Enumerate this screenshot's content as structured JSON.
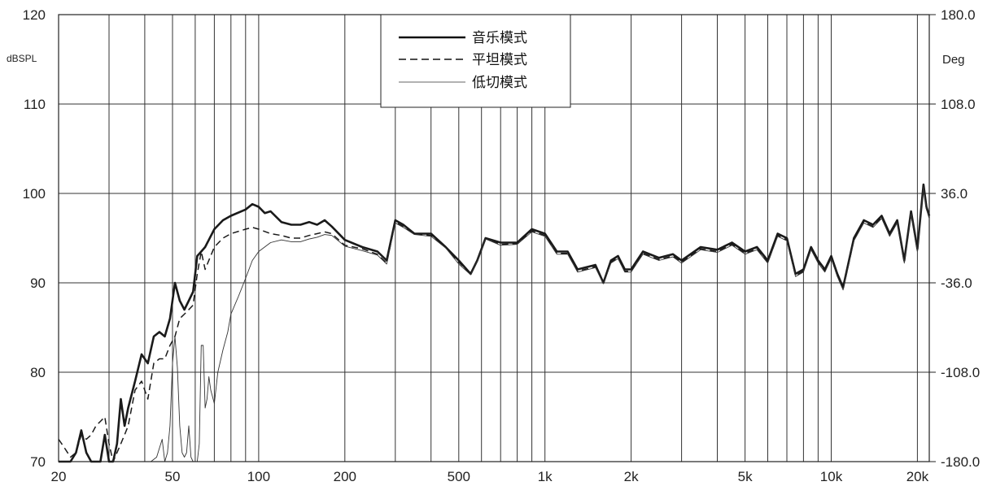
{
  "chart_data": {
    "type": "line",
    "x_scale": "log",
    "xlim": [
      20,
      22000
    ],
    "ylim": [
      70,
      120
    ],
    "y2lim": [
      -180,
      180
    ],
    "grid": true,
    "legend_position": "top-center",
    "y_unit_label": "dBSPL",
    "y2_unit_label": "Deg",
    "x_tick_values": [
      20,
      50,
      100,
      200,
      500,
      1000,
      2000,
      5000,
      10000,
      20000
    ],
    "x_tick_labels": [
      "20",
      "50",
      "100",
      "200",
      "500",
      "1k",
      "2k",
      "5k",
      "10k",
      "20k"
    ],
    "y_tick_values": [
      70,
      80,
      90,
      100,
      110,
      120
    ],
    "y_tick_labels": [
      "70",
      "80",
      "90",
      "100",
      "110",
      "120"
    ],
    "y2_tick_values": [
      -180,
      -108,
      -36,
      36,
      108,
      180
    ],
    "y2_tick_labels": [
      "-180.0",
      "-108.0",
      "-36.0",
      "36.0",
      "108.0",
      "180.0"
    ],
    "series": [
      {
        "name": "音乐模式",
        "style": "solid-thick",
        "color": "#1a1a1a",
        "x": [
          20,
          21,
          22,
          23,
          24,
          25,
          26,
          27,
          28,
          29,
          30,
          31,
          32,
          33,
          34,
          35,
          37,
          39,
          41,
          43,
          45,
          47,
          49,
          51,
          53,
          55,
          57,
          59,
          61,
          63,
          65,
          70,
          75,
          80,
          90,
          95,
          100,
          105,
          110,
          120,
          130,
          140,
          150,
          160,
          170,
          180,
          200,
          230,
          260,
          280,
          300,
          320,
          350,
          400,
          450,
          500,
          550,
          580,
          620,
          700,
          800,
          900,
          1000,
          1100,
          1200,
          1300,
          1500,
          1600,
          1700,
          1800,
          1900,
          2000,
          2200,
          2500,
          2800,
          3000,
          3500,
          4000,
          4500,
          5000,
          5500,
          6000,
          6500,
          7000,
          7500,
          8000,
          8500,
          9000,
          9500,
          10000,
          10500,
          11000,
          12000,
          13000,
          14000,
          15000,
          16000,
          17000,
          18000,
          19000,
          20000,
          21000,
          21500,
          22000
        ],
        "y": [
          70,
          70,
          70,
          71,
          73.5,
          71,
          70,
          70,
          70,
          73,
          70,
          70,
          72,
          77,
          74,
          76,
          79,
          82,
          81,
          84,
          84.5,
          84,
          86,
          90,
          88,
          87,
          88,
          89,
          93,
          93.5,
          94,
          96,
          97,
          97.5,
          98.2,
          98.8,
          98.5,
          97.8,
          98,
          96.8,
          96.5,
          96.5,
          96.8,
          96.5,
          97,
          96.3,
          94.8,
          94,
          93.5,
          92.5,
          97,
          96.5,
          95.5,
          95.5,
          94,
          92.5,
          91,
          92.5,
          95,
          94.5,
          94.5,
          96,
          95.5,
          93.5,
          93.5,
          91.5,
          92,
          90,
          92.5,
          93,
          91.5,
          91.5,
          93.5,
          92.8,
          93.2,
          92.5,
          94,
          93.7,
          94.5,
          93.5,
          94,
          92.5,
          95.5,
          95,
          91,
          91.5,
          94,
          92.5,
          91.5,
          93,
          91,
          89.5,
          95,
          97,
          96.5,
          97.5,
          95.5,
          97,
          92.5,
          98,
          93.8,
          101,
          98.5,
          97.5
        ]
      },
      {
        "name": "平坦模式",
        "style": "dashed",
        "color": "#1a1a1a",
        "x": [
          20,
          21,
          22,
          23,
          24,
          25,
          26,
          27,
          28,
          29,
          30,
          31,
          32,
          33,
          34,
          35,
          37,
          39,
          41,
          43,
          45,
          47,
          49,
          51,
          53,
          55,
          57,
          59,
          61,
          63,
          65,
          70,
          75,
          80,
          90,
          95,
          100,
          110,
          120,
          130,
          140,
          150,
          160,
          170,
          180,
          200,
          230,
          260,
          280,
          300,
          320,
          350,
          400,
          450,
          500,
          550,
          580,
          620,
          700,
          800,
          900,
          1000,
          1100,
          1200,
          1300,
          1500,
          1600,
          1700,
          1800,
          1900,
          2000,
          2200,
          2500,
          2800,
          3000,
          3500,
          4000,
          4500,
          5000,
          5500,
          6000,
          6500,
          7000,
          7500,
          8000,
          8500,
          9000,
          9500,
          10000,
          10500,
          11000,
          12000,
          13000,
          14000,
          15000,
          16000,
          17000,
          18000,
          19000,
          20000,
          21000,
          21500,
          22000
        ],
        "y": [
          72.5,
          71.5,
          70.5,
          71,
          73,
          72.5,
          73,
          74,
          74.5,
          75,
          72,
          70,
          71,
          72,
          73,
          74,
          78,
          79,
          77,
          81,
          81.5,
          81.5,
          83,
          84,
          86,
          86.5,
          87,
          87.5,
          91,
          93.5,
          91.5,
          94,
          95,
          95.5,
          96,
          96.2,
          96,
          95.5,
          95.3,
          95,
          95,
          95.3,
          95.5,
          95.7,
          95.5,
          94.2,
          93.8,
          93.2,
          92.2,
          96.8,
          96.3,
          95.5,
          95.3,
          94,
          92.3,
          91,
          92.5,
          95,
          94.3,
          94.4,
          95.8,
          95.3,
          93.3,
          93.3,
          91.3,
          91.8,
          90,
          92.3,
          92.8,
          91.3,
          91.3,
          93.3,
          92.6,
          93,
          92.3,
          93.8,
          93.5,
          94.3,
          93.3,
          93.8,
          92.3,
          95.3,
          94.8,
          90.8,
          91.3,
          93.8,
          92.3,
          91.3,
          92.8,
          90.8,
          89.3,
          94.8,
          96.8,
          96.3,
          97.3,
          95.3,
          96.8,
          92.3,
          97.8,
          93.6,
          100.8,
          98.3,
          97.3
        ]
      },
      {
        "name": "低切模式",
        "style": "solid-thin",
        "color": "#333333",
        "x": [
          20,
          22,
          24,
          26,
          28,
          30,
          32,
          34,
          36,
          38,
          40,
          42,
          44,
          46,
          47,
          48,
          49,
          50,
          51,
          52,
          53,
          54,
          55,
          56,
          57,
          58,
          59,
          60,
          61,
          62,
          63,
          64,
          65,
          66,
          67,
          68,
          70,
          72,
          75,
          78,
          80,
          85,
          90,
          95,
          100,
          110,
          120,
          130,
          140,
          150,
          160,
          170,
          180,
          200,
          230,
          260,
          280,
          300,
          320,
          350,
          400,
          450,
          500,
          550,
          580,
          620,
          700,
          800,
          900,
          1000,
          1100,
          1200,
          1300,
          1500,
          1600,
          1700,
          1800,
          1900,
          2000,
          2200,
          2500,
          2800,
          3000,
          3500,
          4000,
          4500,
          5000,
          5500,
          6000,
          6500,
          7000,
          7500,
          8000,
          8500,
          9000,
          9500,
          10000,
          10500,
          11000,
          12000,
          13000,
          14000,
          15000,
          16000,
          17000,
          18000,
          19000,
          20000,
          21000,
          21500,
          22000
        ],
        "y": [
          70,
          70,
          70,
          70,
          70,
          70,
          70,
          70,
          70,
          70,
          70,
          70,
          70.5,
          72.5,
          70,
          71,
          74,
          81,
          84,
          80.5,
          74,
          71,
          70.5,
          71,
          74,
          70.5,
          70,
          70,
          70,
          72,
          83,
          83,
          76,
          77,
          79.5,
          78,
          76.5,
          80,
          82.5,
          84.5,
          86.5,
          88.5,
          90.5,
          92.5,
          93.5,
          94.5,
          94.8,
          94.6,
          94.6,
          94.9,
          95.1,
          95.4,
          95.3,
          94.1,
          93.6,
          93.1,
          92.1,
          96.7,
          96.2,
          95.4,
          95.2,
          93.9,
          92.1,
          90.9,
          92.4,
          94.9,
          94.2,
          94.3,
          95.7,
          95.2,
          93.2,
          93.2,
          91.2,
          91.7,
          89.9,
          92.2,
          92.7,
          91.2,
          91.2,
          93.2,
          92.5,
          92.9,
          92.2,
          93.7,
          93.4,
          94.2,
          93.2,
          93.7,
          92.2,
          95.2,
          94.7,
          90.7,
          91.2,
          93.7,
          92.2,
          91.2,
          92.7,
          90.7,
          89.2,
          94.7,
          96.7,
          96.2,
          97.2,
          95.2,
          96.7,
          92.2,
          97.7,
          93.5,
          100.7,
          98.2,
          97.2
        ]
      }
    ]
  }
}
